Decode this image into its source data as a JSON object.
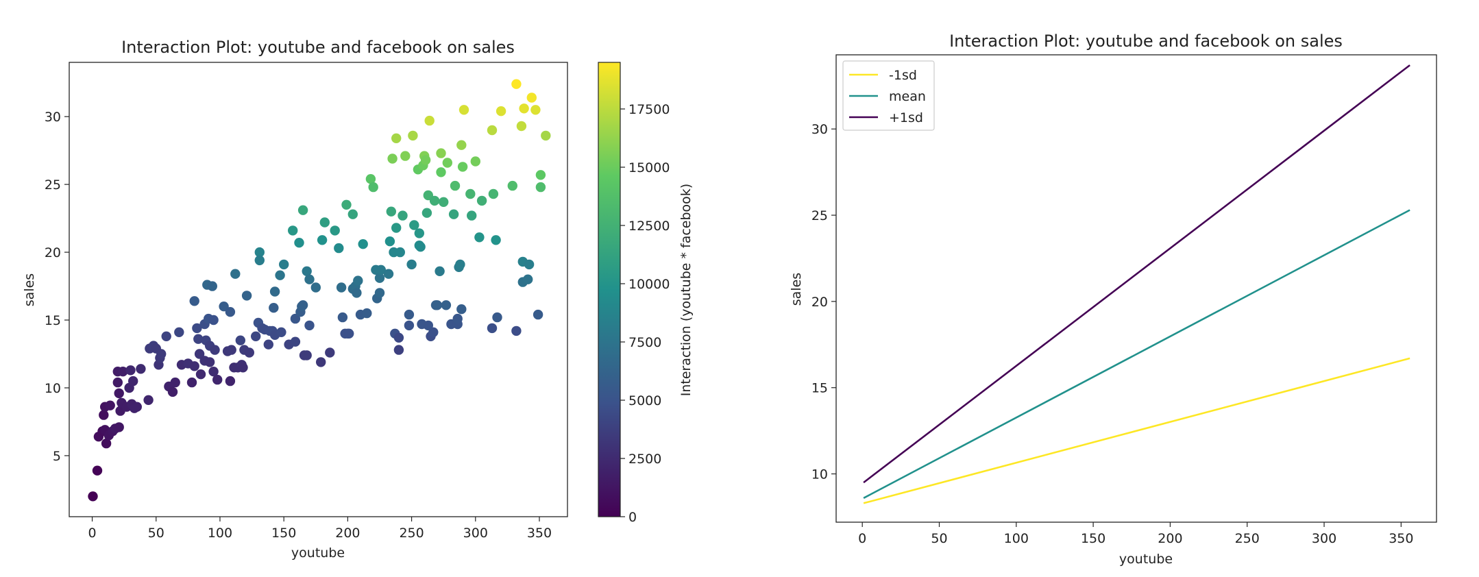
{
  "chart_data": [
    {
      "type": "scatter",
      "title": "Interaction Plot: youtube and facebook on sales",
      "xlabel": "youtube",
      "ylabel": "sales",
      "xlim": [
        -18,
        372
      ],
      "ylim": [
        0.5,
        34
      ],
      "xticks": [
        0,
        50,
        100,
        150,
        200,
        250,
        300,
        350
      ],
      "yticks": [
        5,
        10,
        15,
        20,
        25,
        30
      ],
      "colorbar": {
        "label": "Interaction (youtube * facebook)",
        "range": [
          0,
          19500
        ],
        "ticks": [
          0,
          2500,
          5000,
          7500,
          10000,
          12500,
          15000,
          17500
        ],
        "colormap": [
          "#440154",
          "#3b528b",
          "#21918c",
          "#5ec962",
          "#fde725"
        ]
      },
      "grid": false,
      "points": [
        [
          0.5,
          2.0,
          0
        ],
        [
          4,
          3.9,
          150
        ],
        [
          5,
          6.4,
          700
        ],
        [
          8,
          6.8,
          650
        ],
        [
          9,
          8.0,
          800
        ],
        [
          10,
          6.9,
          900
        ],
        [
          10,
          8.6,
          1000
        ],
        [
          11,
          5.9,
          700
        ],
        [
          13,
          6.5,
          1100
        ],
        [
          14,
          8.7,
          1200
        ],
        [
          16,
          6.8,
          1200
        ],
        [
          18,
          7.0,
          1400
        ],
        [
          20,
          10.4,
          1500
        ],
        [
          20,
          11.2,
          1600
        ],
        [
          21,
          9.6,
          1400
        ],
        [
          21,
          7.1,
          1300
        ],
        [
          22,
          8.3,
          1500
        ],
        [
          23,
          8.9,
          1700
        ],
        [
          24,
          11.2,
          1800
        ],
        [
          27,
          8.6,
          1700
        ],
        [
          29,
          10.0,
          2100
        ],
        [
          30,
          11.3,
          2300
        ],
        [
          31,
          8.8,
          1900
        ],
        [
          32,
          10.5,
          2200
        ],
        [
          33,
          8.5,
          2000
        ],
        [
          35,
          8.6,
          2000
        ],
        [
          38,
          11.4,
          2500
        ],
        [
          44,
          9.1,
          2200
        ],
        [
          45,
          12.9,
          3500
        ],
        [
          48,
          13.1,
          3600
        ],
        [
          50,
          12.9,
          3500
        ],
        [
          52,
          11.7,
          3000
        ],
        [
          53,
          12.2,
          3300
        ],
        [
          54,
          12.5,
          3500
        ],
        [
          58,
          13.8,
          4000
        ],
        [
          60,
          10.1,
          2000
        ],
        [
          63,
          9.7,
          1800
        ],
        [
          65,
          10.4,
          2000
        ],
        [
          68,
          14.1,
          4200
        ],
        [
          70,
          11.7,
          2600
        ],
        [
          75,
          11.8,
          2800
        ],
        [
          78,
          10.4,
          2000
        ],
        [
          80,
          11.6,
          2700
        ],
        [
          80,
          16.4,
          5600
        ],
        [
          82,
          14.4,
          4400
        ],
        [
          83,
          13.6,
          4000
        ],
        [
          84,
          12.5,
          3200
        ],
        [
          85,
          11.0,
          2400
        ],
        [
          88,
          14.7,
          4700
        ],
        [
          88,
          12.0,
          3000
        ],
        [
          89,
          13.5,
          4000
        ],
        [
          90,
          17.6,
          6500
        ],
        [
          91,
          15.1,
          5000
        ],
        [
          92,
          11.9,
          2900
        ],
        [
          92,
          13.1,
          3700
        ],
        [
          94,
          17.5,
          6300
        ],
        [
          95,
          11.2,
          2600
        ],
        [
          95,
          15.0,
          4900
        ],
        [
          96,
          12.8,
          3500
        ],
        [
          98,
          10.6,
          2200
        ],
        [
          103,
          16.0,
          5700
        ],
        [
          106,
          12.7,
          3300
        ],
        [
          108,
          10.5,
          2100
        ],
        [
          108,
          15.6,
          5400
        ],
        [
          109,
          12.8,
          3400
        ],
        [
          111,
          11.5,
          2700
        ],
        [
          112,
          18.4,
          7200
        ],
        [
          114,
          11.5,
          2700
        ],
        [
          116,
          13.5,
          4100
        ],
        [
          117,
          11.7,
          2800
        ],
        [
          118,
          11.5,
          2700
        ],
        [
          119,
          12.8,
          3500
        ],
        [
          121,
          16.8,
          6200
        ],
        [
          123,
          12.6,
          3400
        ],
        [
          128,
          13.8,
          4200
        ],
        [
          130,
          14.8,
          4900
        ],
        [
          131,
          20.0,
          8700
        ],
        [
          131,
          19.4,
          8200
        ],
        [
          133,
          14.4,
          4600
        ],
        [
          135,
          14.3,
          4500
        ],
        [
          138,
          13.2,
          4000
        ],
        [
          139,
          14.2,
          4600
        ],
        [
          141,
          14.2,
          4600
        ],
        [
          142,
          15.9,
          5800
        ],
        [
          143,
          17.1,
          6700
        ],
        [
          143,
          13.9,
          4400
        ],
        [
          147,
          18.3,
          7600
        ],
        [
          148,
          14.1,
          4500
        ],
        [
          150,
          19.1,
          8200
        ],
        [
          154,
          13.2,
          4000
        ],
        [
          157,
          21.6,
          10300
        ],
        [
          159,
          15.1,
          5300
        ],
        [
          159,
          13.4,
          4100
        ],
        [
          162,
          20.7,
          9600
        ],
        [
          163,
          15.6,
          5700
        ],
        [
          164,
          16.0,
          6000
        ],
        [
          165,
          23.1,
          11600
        ],
        [
          165,
          16.1,
          6000
        ],
        [
          166,
          12.4,
          3500
        ],
        [
          168,
          12.4,
          3500
        ],
        [
          168,
          18.6,
          7800
        ],
        [
          170,
          18.0,
          7300
        ],
        [
          170,
          14.6,
          5000
        ],
        [
          175,
          17.4,
          7000
        ],
        [
          179,
          11.9,
          3300
        ],
        [
          180,
          20.9,
          9800
        ],
        [
          182,
          22.2,
          10900
        ],
        [
          186,
          12.6,
          3500
        ],
        [
          190,
          21.6,
          10400
        ],
        [
          193,
          20.3,
          9300
        ],
        [
          195,
          17.4,
          7000
        ],
        [
          196,
          15.2,
          5500
        ],
        [
          198,
          14.0,
          4800
        ],
        [
          199,
          23.5,
          12000
        ],
        [
          200,
          14.0,
          4800
        ],
        [
          201,
          14.0,
          4800
        ],
        [
          204,
          22.8,
          11400
        ],
        [
          204,
          17.3,
          6900
        ],
        [
          206,
          17.5,
          7100
        ],
        [
          207,
          17.0,
          6700
        ],
        [
          208,
          17.9,
          7400
        ],
        [
          210,
          15.4,
          5600
        ],
        [
          212,
          20.6,
          9700
        ],
        [
          215,
          15.5,
          5700
        ],
        [
          218,
          25.4,
          14200
        ],
        [
          220,
          24.8,
          13500
        ],
        [
          222,
          18.7,
          8000
        ],
        [
          223,
          16.6,
          6300
        ],
        [
          225,
          17.0,
          6600
        ],
        [
          225,
          18.1,
          7400
        ],
        [
          226,
          18.7,
          8000
        ],
        [
          232,
          18.4,
          7700
        ],
        [
          233,
          20.8,
          9700
        ],
        [
          234,
          23.0,
          11600
        ],
        [
          235,
          26.9,
          15500
        ],
        [
          236,
          20.0,
          8900
        ],
        [
          237,
          14.0,
          4800
        ],
        [
          238,
          21.8,
          10400
        ],
        [
          238,
          28.4,
          16800
        ],
        [
          240,
          12.8,
          3800
        ],
        [
          240,
          13.7,
          4300
        ],
        [
          241,
          20.0,
          8900
        ],
        [
          243,
          22.7,
          11400
        ],
        [
          245,
          27.1,
          15700
        ],
        [
          248,
          15.4,
          5600
        ],
        [
          248,
          14.6,
          5000
        ],
        [
          250,
          19.1,
          8200
        ],
        [
          251,
          28.6,
          16900
        ],
        [
          252,
          22.0,
          10600
        ],
        [
          255,
          26.1,
          14700
        ],
        [
          256,
          20.5,
          9400
        ],
        [
          256,
          21.4,
          10200
        ],
        [
          257,
          20.4,
          9300
        ],
        [
          258,
          14.7,
          5100
        ],
        [
          259,
          26.4,
          15000
        ],
        [
          260,
          27.1,
          15700
        ],
        [
          261,
          26.8,
          15300
        ],
        [
          262,
          22.9,
          11500
        ],
        [
          263,
          14.6,
          5000
        ],
        [
          263,
          24.2,
          12600
        ],
        [
          264,
          29.7,
          17900
        ],
        [
          265,
          13.8,
          4600
        ],
        [
          267,
          14.1,
          4800
        ],
        [
          268,
          23.8,
          12300
        ],
        [
          269,
          16.1,
          6000
        ],
        [
          270,
          16.1,
          6000
        ],
        [
          272,
          18.6,
          8000
        ],
        [
          273,
          27.3,
          15900
        ],
        [
          273,
          25.9,
          14600
        ],
        [
          275,
          23.7,
          12200
        ],
        [
          277,
          16.1,
          6000
        ],
        [
          278,
          26.6,
          15200
        ],
        [
          281,
          14.7,
          5100
        ],
        [
          283,
          22.8,
          11400
        ],
        [
          284,
          24.9,
          13400
        ],
        [
          286,
          14.7,
          5100
        ],
        [
          286,
          15.1,
          5300
        ],
        [
          287,
          18.9,
          8100
        ],
        [
          288,
          19.1,
          8300
        ],
        [
          289,
          27.9,
          16300
        ],
        [
          289,
          15.8,
          5800
        ],
        [
          290,
          26.3,
          14900
        ],
        [
          291,
          30.5,
          18300
        ],
        [
          296,
          24.3,
          12800
        ],
        [
          297,
          22.7,
          11400
        ],
        [
          300,
          26.7,
          15300
        ],
        [
          303,
          21.1,
          10000
        ],
        [
          305,
          23.8,
          12300
        ],
        [
          313,
          29.0,
          17400
        ],
        [
          313,
          14.4,
          4700
        ],
        [
          314,
          24.3,
          12800
        ],
        [
          316,
          20.9,
          9900
        ],
        [
          317,
          15.2,
          5500
        ],
        [
          320,
          30.4,
          18500
        ],
        [
          329,
          24.9,
          13500
        ],
        [
          332,
          14.2,
          4600
        ],
        [
          332,
          32.4,
          19500
        ],
        [
          336,
          29.3,
          17700
        ],
        [
          337,
          19.3,
          8500
        ],
        [
          337,
          17.8,
          7300
        ],
        [
          338,
          30.6,
          18700
        ],
        [
          341,
          18.0,
          7400
        ],
        [
          342,
          19.1,
          8300
        ],
        [
          344,
          31.4,
          19200
        ],
        [
          347,
          30.5,
          18500
        ],
        [
          349,
          15.4,
          5600
        ],
        [
          351,
          25.7,
          14500
        ],
        [
          351,
          24.8,
          13500
        ],
        [
          355,
          28.6,
          16800
        ]
      ]
    },
    {
      "type": "line",
      "title": "Interaction Plot: youtube and facebook on sales",
      "xlabel": "youtube",
      "ylabel": "sales",
      "xlim": [
        -17,
        373
      ],
      "ylim": [
        7.2,
        34.3
      ],
      "xticks": [
        0,
        50,
        100,
        150,
        200,
        250,
        300,
        350
      ],
      "yticks": [
        10,
        15,
        20,
        25,
        30
      ],
      "grid": false,
      "legend_position": "top-left",
      "x": [
        0.84,
        355.68
      ],
      "series": [
        {
          "name": "-1sd",
          "color": "#fde725",
          "values": [
            8.3,
            16.7
          ]
        },
        {
          "name": "mean",
          "color": "#21918c",
          "values": [
            8.6,
            25.3
          ]
        },
        {
          "name": "+1sd",
          "color": "#440154",
          "values": [
            9.5,
            33.7
          ]
        }
      ]
    }
  ]
}
